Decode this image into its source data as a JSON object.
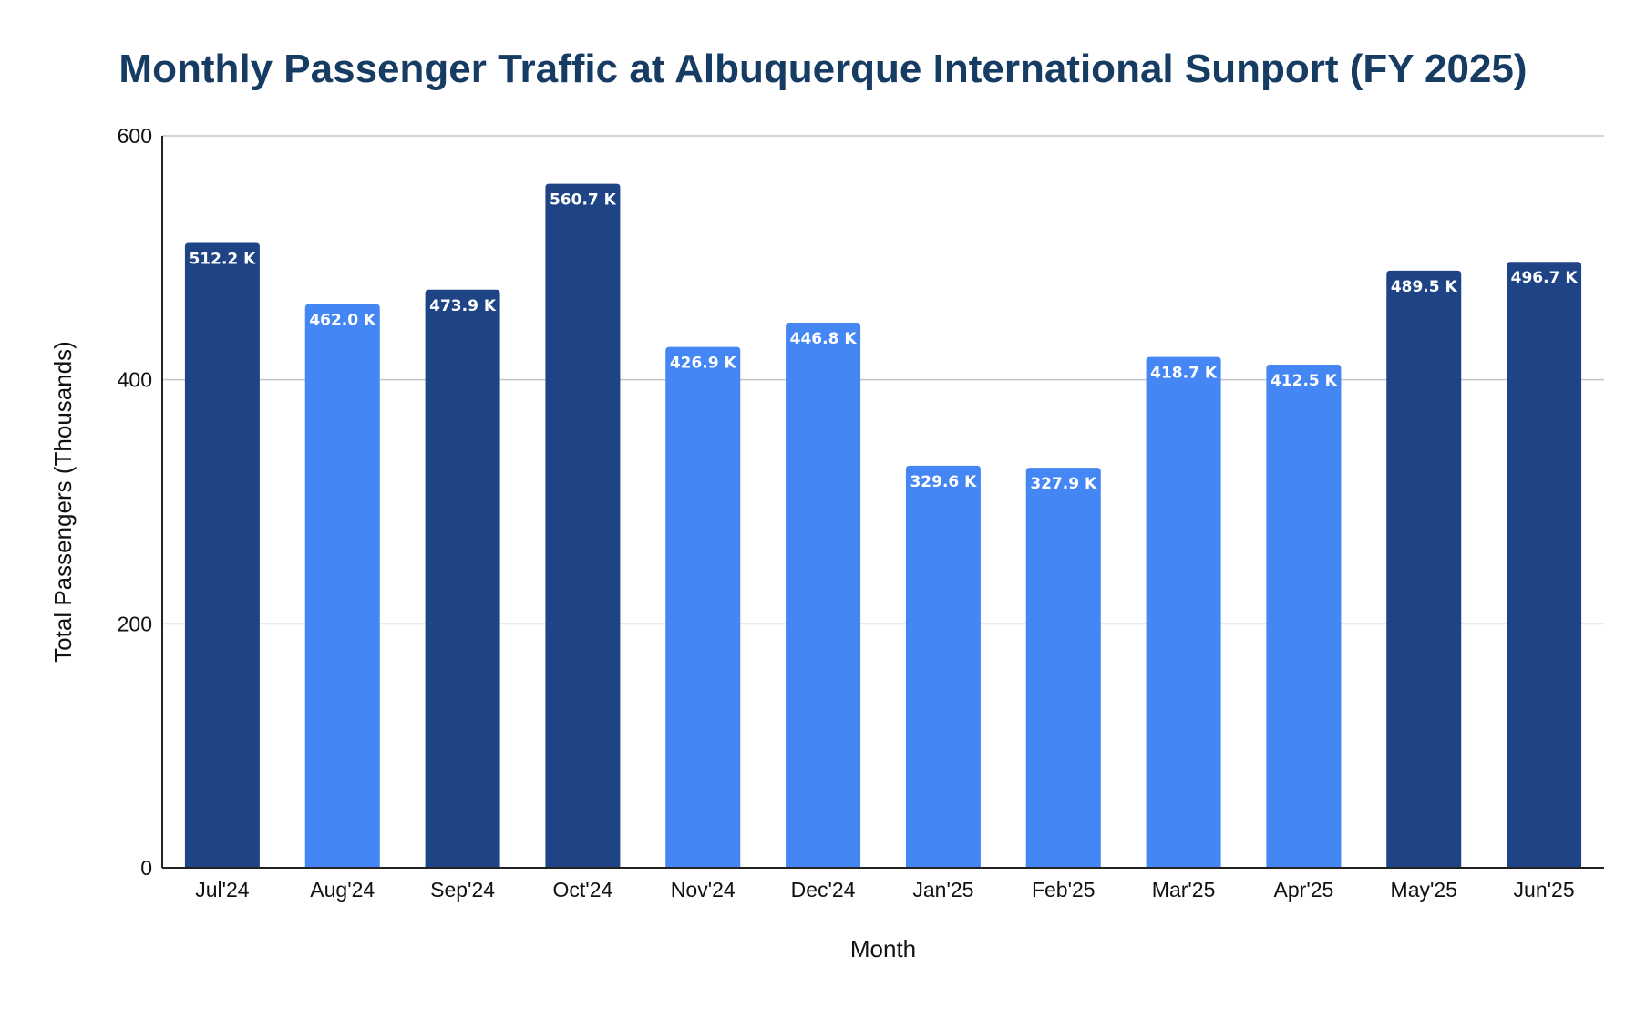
{
  "chart_data": {
    "type": "bar",
    "title": "Monthly Passenger Traffic at Albuquerque International Sunport (FY 2025)",
    "xlabel": "Month",
    "ylabel": "Total Passengers (Thousands)",
    "ylim": [
      0,
      600
    ],
    "yticks": [
      0,
      200,
      400,
      600
    ],
    "grid": true,
    "categories": [
      "Jul'24",
      "Aug'24",
      "Sep'24",
      "Oct'24",
      "Nov'24",
      "Dec'24",
      "Jan'25",
      "Feb'25",
      "Mar'25",
      "Apr'25",
      "May'25",
      "Jun'25"
    ],
    "values": [
      512.2,
      462.0,
      473.9,
      560.7,
      426.9,
      446.8,
      329.6,
      327.9,
      418.7,
      412.5,
      489.5,
      496.7
    ],
    "data_labels": [
      "512.2 K",
      "462.0 K",
      "473.9 K",
      "560.7 K",
      "426.9 K",
      "446.8 K",
      "329.6 K",
      "327.9 K",
      "418.7 K",
      "412.5 K",
      "489.5 K",
      "496.7 K"
    ],
    "bar_colors": [
      "#1e4486",
      "#4486f4",
      "#1e4486",
      "#1e4486",
      "#4486f4",
      "#4486f4",
      "#4486f4",
      "#4486f4",
      "#4486f4",
      "#4486f4",
      "#1e4486",
      "#1e4486"
    ],
    "colors": {
      "dark_bar": "#1e4486",
      "light_bar": "#4486f4",
      "title": "#163c64",
      "gridline": "#c6c6c6"
    }
  }
}
